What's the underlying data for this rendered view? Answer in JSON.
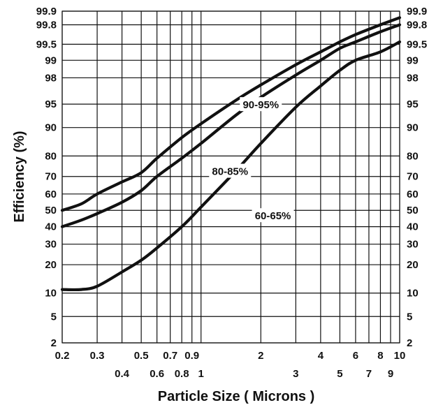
{
  "chart_data": {
    "type": "line",
    "title": "",
    "xlabel": "Particle Size  ( Microns )",
    "ylabel": "Efficiency (%)",
    "x_scale": "log",
    "y_scale": "probability",
    "xlim": [
      0.2,
      10
    ],
    "ylim": [
      2,
      99.9
    ],
    "grid": true,
    "x_ticks_top_row": [
      "0.2",
      "0.3",
      "0.5",
      "0.7",
      "0.9",
      "2",
      "4",
      "6",
      "8",
      "10"
    ],
    "x_ticks_bottom_row": [
      "0.4",
      "0.6",
      "0.8",
      "1",
      "3",
      "5",
      "7",
      "9"
    ],
    "y_ticks": [
      "99.9",
      "99.8",
      "99.5",
      "99",
      "98",
      "95",
      "90",
      "80",
      "70",
      "60",
      "50",
      "40",
      "30",
      "20",
      "10",
      "5",
      "2"
    ],
    "series": [
      {
        "name": "90-95%",
        "x": [
          0.2,
          0.25,
          0.3,
          0.4,
          0.5,
          0.6,
          0.8,
          1,
          1.5,
          2,
          3,
          4,
          5,
          6,
          8,
          10
        ],
        "y": [
          50,
          54,
          60,
          67,
          72,
          79,
          87,
          91,
          95.6,
          97.4,
          98.8,
          99.3,
          99.55,
          99.68,
          99.8,
          99.86
        ]
      },
      {
        "name": "80-85%",
        "x": [
          0.2,
          0.25,
          0.3,
          0.4,
          0.5,
          0.6,
          0.8,
          1,
          1.5,
          2,
          3,
          4,
          5,
          6,
          8,
          10
        ],
        "y": [
          40,
          44,
          48,
          55,
          62,
          70,
          79,
          85,
          93,
          96,
          98.2,
          99,
          99.4,
          99.55,
          99.72,
          99.8
        ]
      },
      {
        "name": "60-65%",
        "x": [
          0.2,
          0.25,
          0.3,
          0.4,
          0.5,
          0.6,
          0.8,
          1,
          1.5,
          2,
          3,
          4,
          5,
          6,
          8,
          10
        ],
        "y": [
          11,
          11,
          12,
          17,
          22,
          28,
          40,
          52,
          73,
          85,
          94.5,
          97.3,
          98.5,
          99,
          99.3,
          99.55
        ]
      }
    ],
    "curve_labels": [
      {
        "series": "90-95%",
        "x": 2.0,
        "y": 95.0
      },
      {
        "series": "80-85%",
        "x": 1.4,
        "y": 73.0
      },
      {
        "series": "60-65%",
        "x": 2.3,
        "y": 47.0
      }
    ]
  }
}
